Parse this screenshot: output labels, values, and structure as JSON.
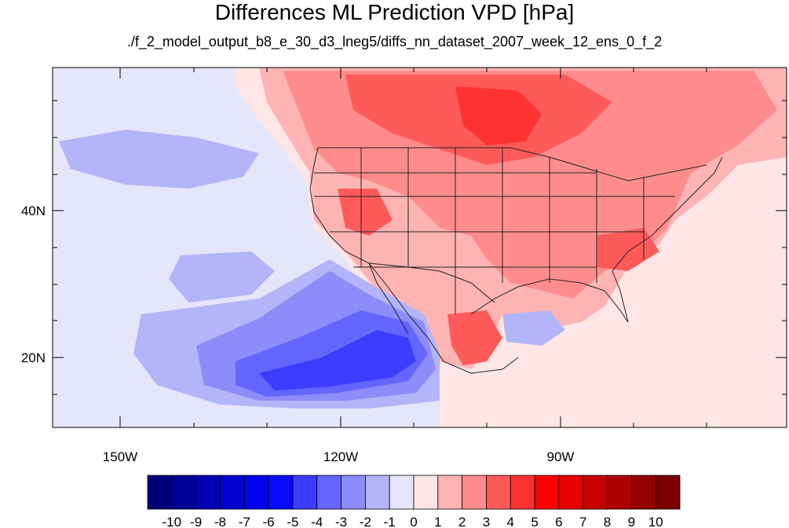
{
  "title": "Differences ML Prediction VPD [hPa]",
  "subtitle": "./f_2_model_output_b8_e_30_d3_lneg5/diffs_nn_dataset_2007_week_12_ens_0_f_2",
  "map": {
    "projection": "lat-lon (cylindrical equidistant)",
    "lon_range": [
      -160,
      -62
    ],
    "lat_range": [
      10,
      59
    ],
    "x_ticks": [
      {
        "lon": -150,
        "label": "150W"
      },
      {
        "lon": -120,
        "label": "120W"
      },
      {
        "lon": -90,
        "label": "90W"
      }
    ],
    "y_ticks": [
      {
        "lat": 40,
        "label": "40N"
      },
      {
        "lat": 20,
        "label": "20N"
      }
    ]
  },
  "colorbar": {
    "labels": [
      "-10",
      "-9",
      "-8",
      "-7",
      "-6",
      "-5",
      "-4",
      "-3",
      "-2",
      "-1",
      "0",
      "1",
      "2",
      "3",
      "4",
      "5",
      "6",
      "7",
      "8",
      "9",
      "10"
    ],
    "colors": [
      "#00007a",
      "#000096",
      "#0000b4",
      "#0000d2",
      "#0000ee",
      "#0a0aff",
      "#3c3cff",
      "#6464ff",
      "#8c8cfa",
      "#b4b4fa",
      "#e6e6fa",
      "#ffe6e6",
      "#ffb4b4",
      "#ff8c8c",
      "#ff5a5a",
      "#ff3232",
      "#ff0000",
      "#e60000",
      "#c80000",
      "#aa0000",
      "#960000",
      "#7a0000"
    ]
  },
  "colors": {
    "background_negative": "#e6e6fa",
    "positive_light": "#ffe6e6",
    "positive_medium": "#ff8c8c",
    "negative_medium": "#6464ff"
  }
}
